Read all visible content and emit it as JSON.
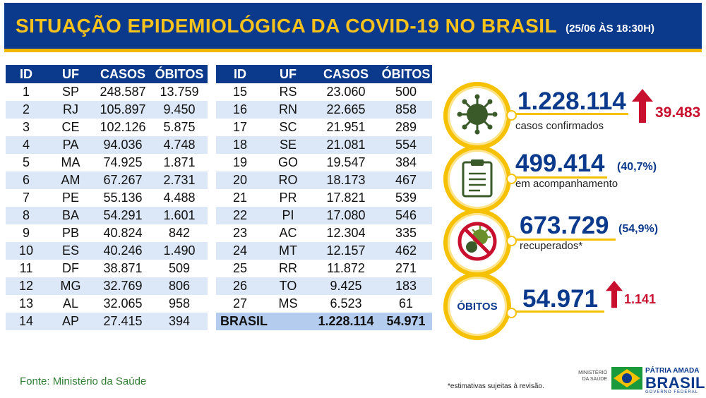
{
  "header": {
    "title": "SITUAÇÃO EPIDEMIOLÓGICA DA COVID-19 NO BRASIL",
    "date": "(25/06 ÀS 18:30H)"
  },
  "table_headers": {
    "id": "ID",
    "uf": "UF",
    "casos": "CASOS",
    "obitos": "ÓBITOS"
  },
  "left_rows": [
    [
      "1",
      "SP",
      "248.587",
      "13.759"
    ],
    [
      "2",
      "RJ",
      "105.897",
      "9.450"
    ],
    [
      "3",
      "CE",
      "102.126",
      "5.875"
    ],
    [
      "4",
      "PA",
      "94.036",
      "4.748"
    ],
    [
      "5",
      "MA",
      "74.925",
      "1.871"
    ],
    [
      "6",
      "AM",
      "67.267",
      "2.731"
    ],
    [
      "7",
      "PE",
      "55.136",
      "4.488"
    ],
    [
      "8",
      "BA",
      "54.291",
      "1.601"
    ],
    [
      "9",
      "PB",
      "40.824",
      "842"
    ],
    [
      "10",
      "ES",
      "40.246",
      "1.490"
    ],
    [
      "11",
      "DF",
      "38.871",
      "509"
    ],
    [
      "12",
      "MG",
      "32.769",
      "806"
    ],
    [
      "13",
      "AL",
      "32.065",
      "958"
    ],
    [
      "14",
      "AP",
      "27.415",
      "394"
    ]
  ],
  "right_rows": [
    [
      "15",
      "RS",
      "23.060",
      "500"
    ],
    [
      "16",
      "RN",
      "22.665",
      "858"
    ],
    [
      "17",
      "SC",
      "21.951",
      "289"
    ],
    [
      "18",
      "SE",
      "21.081",
      "554"
    ],
    [
      "19",
      "GO",
      "19.547",
      "384"
    ],
    [
      "20",
      "RO",
      "18.173",
      "467"
    ],
    [
      "21",
      "PR",
      "17.821",
      "539"
    ],
    [
      "22",
      "PI",
      "17.080",
      "546"
    ],
    [
      "23",
      "AC",
      "12.304",
      "335"
    ],
    [
      "24",
      "MT",
      "12.157",
      "462"
    ],
    [
      "25",
      "RR",
      "11.872",
      "271"
    ],
    [
      "26",
      "TO",
      "9.425",
      "183"
    ],
    [
      "27",
      "MS",
      "6.523",
      "61"
    ]
  ],
  "total": {
    "label": "BRASIL",
    "casos": "1.228.114",
    "obitos": "54.971"
  },
  "stats": {
    "confirmados": {
      "value": "1.228.114",
      "label": "casos confirmados",
      "delta": "39.483",
      "icon": "virus-icon"
    },
    "acompanhamento": {
      "value": "499.414",
      "pct": "(40,7%)",
      "label": "em acompanhamento",
      "icon": "clipboard-icon"
    },
    "recuperados": {
      "value": "673.729",
      "pct": "(54,9%)",
      "label": "recuperados*",
      "icon": "virus-crossed-icon"
    },
    "obitos": {
      "circle_label": "ÓBITOS",
      "value": "54.971",
      "delta": "1.141"
    }
  },
  "footer": {
    "source": "Fonte: Ministério da Saúde",
    "note": "*estimativas sujeitas à revisão.",
    "ministerio": "MINISTÉRIO DA SAÚDE",
    "patria": "PÁTRIA AMADA",
    "brasil": "BRASIL",
    "gov": "GOVERNO FEDERAL"
  },
  "colors": {
    "brand_blue": "#0b3a8c",
    "accent_yellow": "#f5c100",
    "alert_red": "#c8102e",
    "row_blue": "#dce8f7"
  }
}
